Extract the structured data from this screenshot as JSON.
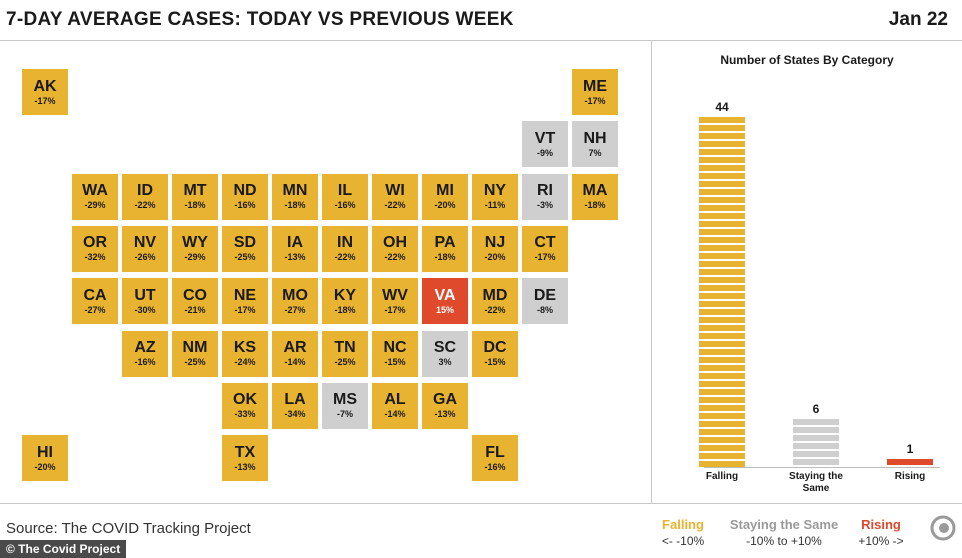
{
  "header": {
    "title": "7-DAY AVERAGE CASES: TODAY VS PREVIOUS WEEK",
    "date": "Jan 22"
  },
  "colors": {
    "falling": "#e8b330",
    "staying_the_same": "#cfcfcf",
    "rising": "#de4a2b"
  },
  "map": {
    "tiles": [
      {
        "state": "AK",
        "change": "-17%",
        "category": "falling",
        "col": 0,
        "row": 0
      },
      {
        "state": "ME",
        "change": "-17%",
        "category": "falling",
        "col": 11,
        "row": 0
      },
      {
        "state": "VT",
        "change": "-9%",
        "category": "same",
        "col": 10,
        "row": 1
      },
      {
        "state": "NH",
        "change": "7%",
        "category": "same",
        "col": 11,
        "row": 1
      },
      {
        "state": "WA",
        "change": "-29%",
        "category": "falling",
        "col": 1,
        "row": 2
      },
      {
        "state": "ID",
        "change": "-22%",
        "category": "falling",
        "col": 2,
        "row": 2
      },
      {
        "state": "MT",
        "change": "-18%",
        "category": "falling",
        "col": 3,
        "row": 2
      },
      {
        "state": "ND",
        "change": "-16%",
        "category": "falling",
        "col": 4,
        "row": 2
      },
      {
        "state": "MN",
        "change": "-18%",
        "category": "falling",
        "col": 5,
        "row": 2
      },
      {
        "state": "IL",
        "change": "-16%",
        "category": "falling",
        "col": 6,
        "row": 2
      },
      {
        "state": "WI",
        "change": "-22%",
        "category": "falling",
        "col": 7,
        "row": 2
      },
      {
        "state": "MI",
        "change": "-20%",
        "category": "falling",
        "col": 8,
        "row": 2
      },
      {
        "state": "NY",
        "change": "-11%",
        "category": "falling",
        "col": 9,
        "row": 2
      },
      {
        "state": "RI",
        "change": "-3%",
        "category": "same",
        "col": 10,
        "row": 2
      },
      {
        "state": "MA",
        "change": "-18%",
        "category": "falling",
        "col": 11,
        "row": 2
      },
      {
        "state": "OR",
        "change": "-32%",
        "category": "falling",
        "col": 1,
        "row": 3
      },
      {
        "state": "NV",
        "change": "-26%",
        "category": "falling",
        "col": 2,
        "row": 3
      },
      {
        "state": "WY",
        "change": "-29%",
        "category": "falling",
        "col": 3,
        "row": 3
      },
      {
        "state": "SD",
        "change": "-25%",
        "category": "falling",
        "col": 4,
        "row": 3
      },
      {
        "state": "IA",
        "change": "-13%",
        "category": "falling",
        "col": 5,
        "row": 3
      },
      {
        "state": "IN",
        "change": "-22%",
        "category": "falling",
        "col": 6,
        "row": 3
      },
      {
        "state": "OH",
        "change": "-22%",
        "category": "falling",
        "col": 7,
        "row": 3
      },
      {
        "state": "PA",
        "change": "-18%",
        "category": "falling",
        "col": 8,
        "row": 3
      },
      {
        "state": "NJ",
        "change": "-20%",
        "category": "falling",
        "col": 9,
        "row": 3
      },
      {
        "state": "CT",
        "change": "-17%",
        "category": "falling",
        "col": 10,
        "row": 3
      },
      {
        "state": "CA",
        "change": "-27%",
        "category": "falling",
        "col": 1,
        "row": 4
      },
      {
        "state": "UT",
        "change": "-30%",
        "category": "falling",
        "col": 2,
        "row": 4
      },
      {
        "state": "CO",
        "change": "-21%",
        "category": "falling",
        "col": 3,
        "row": 4
      },
      {
        "state": "NE",
        "change": "-17%",
        "category": "falling",
        "col": 4,
        "row": 4
      },
      {
        "state": "MO",
        "change": "-27%",
        "category": "falling",
        "col": 5,
        "row": 4
      },
      {
        "state": "KY",
        "change": "-18%",
        "category": "falling",
        "col": 6,
        "row": 4
      },
      {
        "state": "WV",
        "change": "-17%",
        "category": "falling",
        "col": 7,
        "row": 4
      },
      {
        "state": "VA",
        "change": "15%",
        "category": "rising",
        "col": 8,
        "row": 4
      },
      {
        "state": "MD",
        "change": "-22%",
        "category": "falling",
        "col": 9,
        "row": 4
      },
      {
        "state": "DE",
        "change": "-8%",
        "category": "same",
        "col": 10,
        "row": 4
      },
      {
        "state": "AZ",
        "change": "-16%",
        "category": "falling",
        "col": 2,
        "row": 5
      },
      {
        "state": "NM",
        "change": "-25%",
        "category": "falling",
        "col": 3,
        "row": 5
      },
      {
        "state": "KS",
        "change": "-24%",
        "category": "falling",
        "col": 4,
        "row": 5
      },
      {
        "state": "AR",
        "change": "-14%",
        "category": "falling",
        "col": 5,
        "row": 5
      },
      {
        "state": "TN",
        "change": "-25%",
        "category": "falling",
        "col": 6,
        "row": 5
      },
      {
        "state": "NC",
        "change": "-15%",
        "category": "falling",
        "col": 7,
        "row": 5
      },
      {
        "state": "SC",
        "change": "3%",
        "category": "same",
        "col": 8,
        "row": 5
      },
      {
        "state": "DC",
        "change": "-15%",
        "category": "falling",
        "col": 9,
        "row": 5
      },
      {
        "state": "OK",
        "change": "-33%",
        "category": "falling",
        "col": 4,
        "row": 6
      },
      {
        "state": "LA",
        "change": "-34%",
        "category": "falling",
        "col": 5,
        "row": 6
      },
      {
        "state": "MS",
        "change": "-7%",
        "category": "same",
        "col": 6,
        "row": 6
      },
      {
        "state": "AL",
        "change": "-14%",
        "category": "falling",
        "col": 7,
        "row": 6
      },
      {
        "state": "GA",
        "change": "-13%",
        "category": "falling",
        "col": 8,
        "row": 6
      },
      {
        "state": "HI",
        "change": "-20%",
        "category": "falling",
        "col": 0,
        "row": 7
      },
      {
        "state": "TX",
        "change": "-13%",
        "category": "falling",
        "col": 4,
        "row": 7
      },
      {
        "state": "FL",
        "change": "-16%",
        "category": "falling",
        "col": 9,
        "row": 7
      }
    ]
  },
  "chart_data": {
    "type": "bar",
    "title": "Number of States By Category",
    "categories": [
      "Falling",
      "Staying the Same",
      "Rising"
    ],
    "values": [
      44,
      6,
      1
    ],
    "colors": [
      "#e8b330",
      "#cfcfcf",
      "#de4a2b"
    ],
    "ylim": [
      0,
      44
    ]
  },
  "footer": {
    "source": "Source: The COVID Tracking Project",
    "credit": "© The Covid Project",
    "legend": [
      {
        "label": "Falling",
        "range": "<- -10%",
        "color": "#e8b330"
      },
      {
        "label": "Staying the Same",
        "range": "-10% to +10%",
        "color": "#9a9a9a"
      },
      {
        "label": "Rising",
        "range": "+10% ->",
        "color": "#de4a2b"
      }
    ]
  }
}
